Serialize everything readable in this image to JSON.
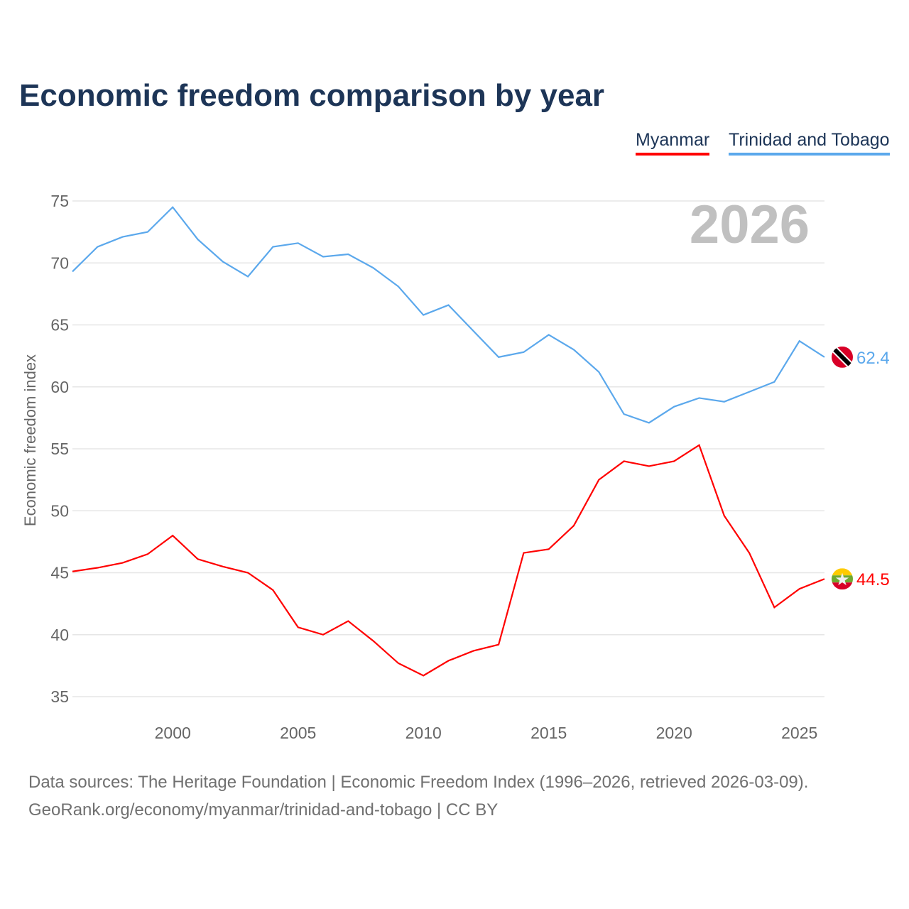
{
  "title": "Economic freedom comparison by year",
  "footer": {
    "line1": "Data sources: The Heritage Foundation | Economic Freedom Index (1996–2026, retrieved 2026-03-09).",
    "line2": "GeoRank.org/economy/myanmar/trinidad-and-tobago | CC BY"
  },
  "chart_data": {
    "type": "line",
    "title": "Economic freedom comparison by year",
    "ylabel": "Economic freedom index",
    "xlabel": "",
    "year_watermark": "2026",
    "xlim": [
      1996,
      2026
    ],
    "ylim": [
      35,
      75
    ],
    "xticks": [
      "2000",
      "2005",
      "2010",
      "2015",
      "2020",
      "2025"
    ],
    "yticks": [
      "35",
      "40",
      "45",
      "50",
      "55",
      "60",
      "65",
      "70",
      "75"
    ],
    "grid": true,
    "legend": "top-right",
    "x": [
      1996,
      1997,
      1998,
      1999,
      2000,
      2001,
      2002,
      2003,
      2004,
      2005,
      2006,
      2007,
      2008,
      2009,
      2010,
      2011,
      2012,
      2013,
      2014,
      2015,
      2016,
      2017,
      2018,
      2019,
      2020,
      2021,
      2022,
      2023,
      2024,
      2025,
      2026
    ],
    "series": [
      {
        "name": "Myanmar",
        "color": "#ff0000",
        "end_label": "44.5",
        "flag": "myanmar-flag",
        "values": [
          45.1,
          45.4,
          45.8,
          46.5,
          48.0,
          46.1,
          45.5,
          45.0,
          43.6,
          40.6,
          40.0,
          41.1,
          39.5,
          37.7,
          36.7,
          37.9,
          38.7,
          39.2,
          46.6,
          46.9,
          48.8,
          52.5,
          54.0,
          53.6,
          54.0,
          55.3,
          49.6,
          46.6,
          42.2,
          43.7,
          44.5
        ]
      },
      {
        "name": "Trinidad and Tobago",
        "color": "#5ba8ec",
        "end_label": "62.4",
        "flag": "trinidad-flag",
        "values": [
          69.3,
          71.3,
          72.1,
          72.5,
          74.5,
          71.9,
          70.1,
          68.9,
          71.3,
          71.6,
          70.5,
          70.7,
          69.6,
          68.1,
          65.8,
          66.6,
          64.5,
          62.4,
          62.8,
          64.2,
          63.0,
          61.2,
          57.8,
          57.1,
          58.4,
          59.1,
          58.8,
          59.6,
          60.4,
          63.7,
          62.4
        ]
      }
    ]
  }
}
